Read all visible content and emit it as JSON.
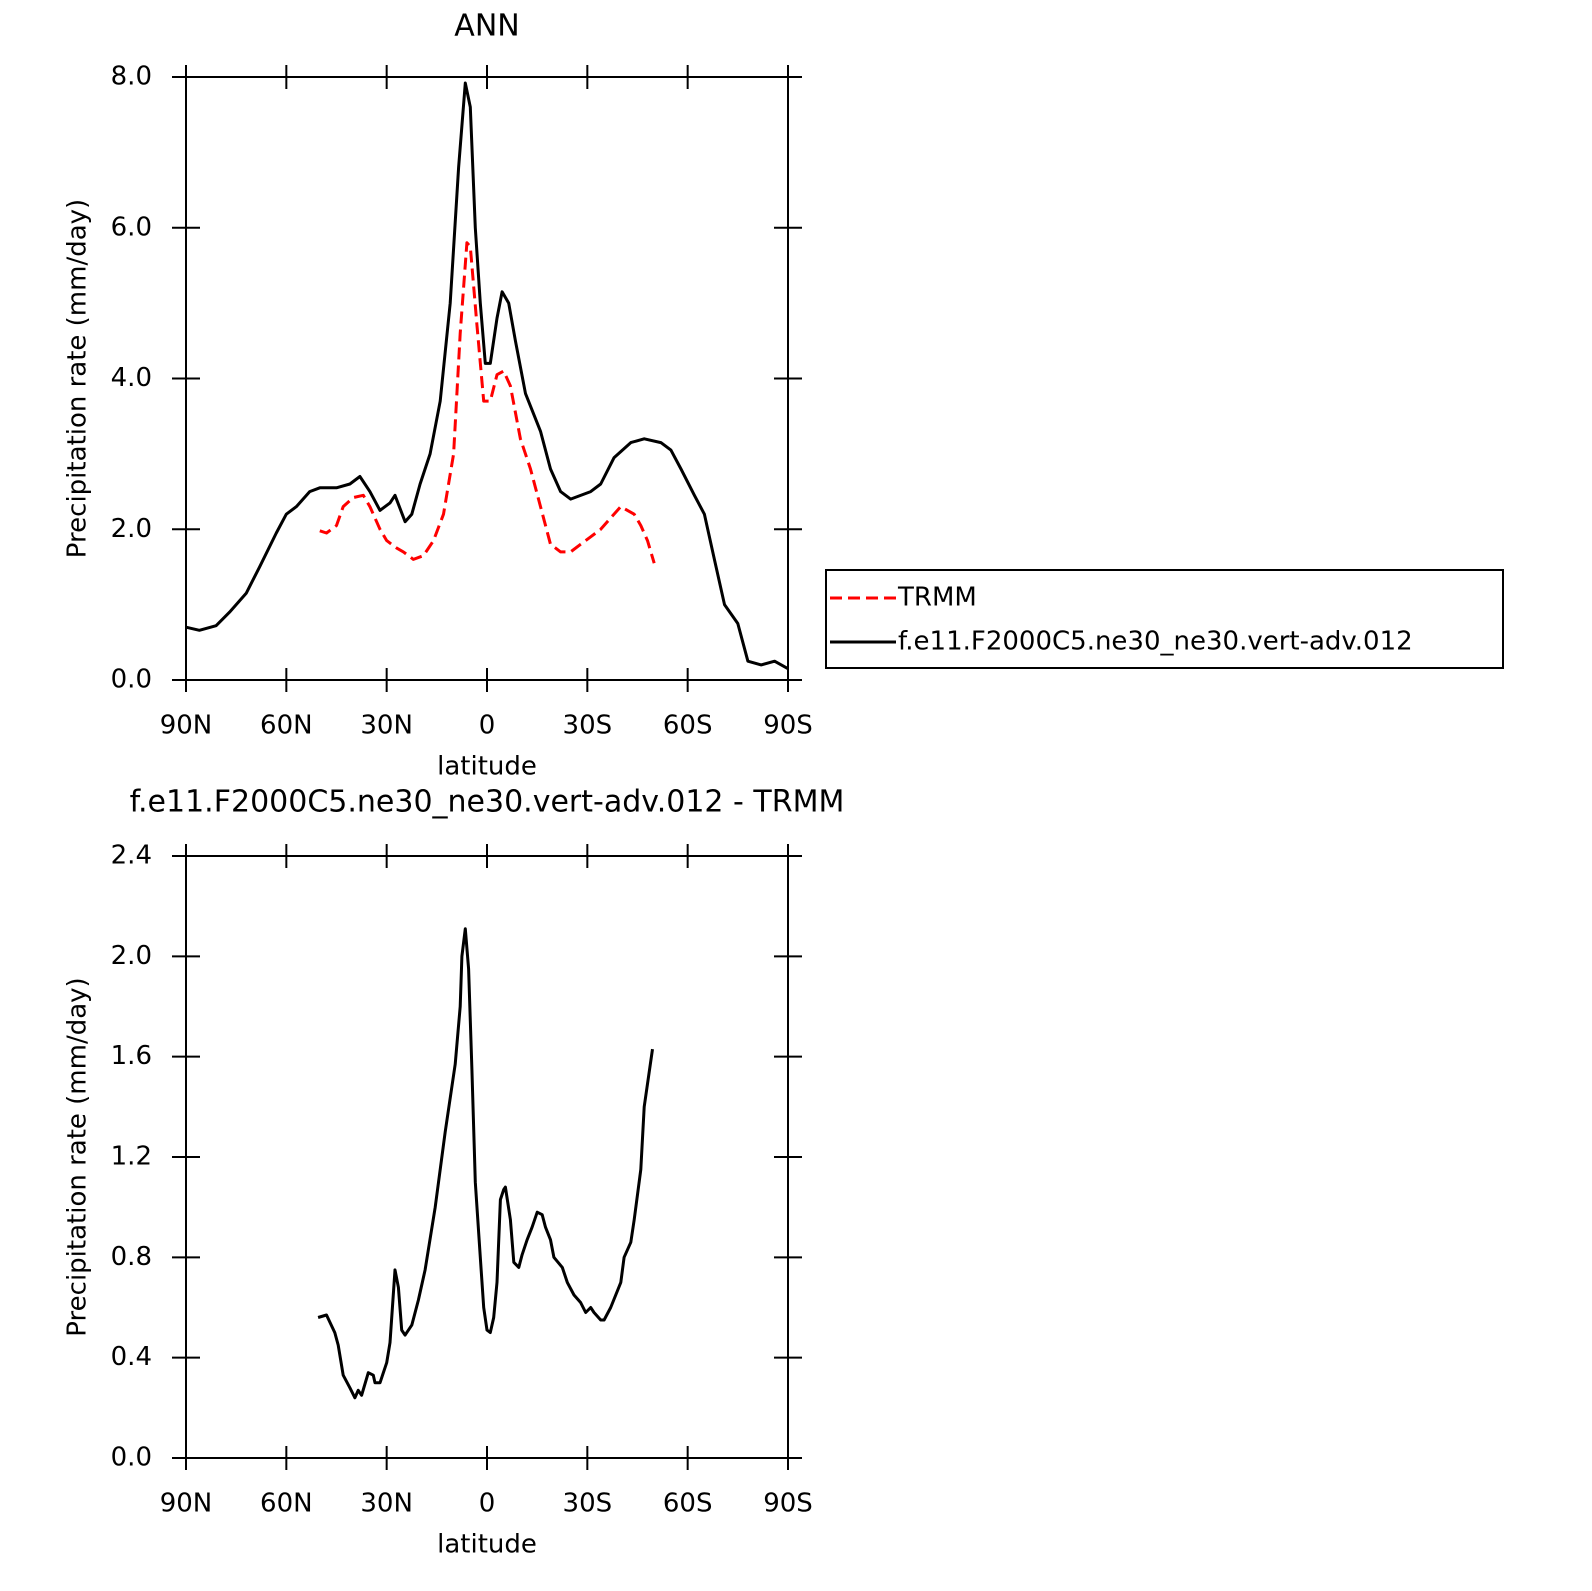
{
  "chart_data": [
    {
      "type": "line",
      "title": "ANN",
      "xlabel": "latitude",
      "ylabel": "Precipitation rate (mm/day)",
      "xlim": [
        90,
        -90
      ],
      "xticks": [
        {
          "value": 90,
          "label": "90N"
        },
        {
          "value": 60,
          "label": "60N"
        },
        {
          "value": 30,
          "label": "30N"
        },
        0,
        {
          "value": -30,
          "label": "30S"
        },
        {
          "value": -60,
          "label": "60S"
        },
        {
          "value": -90,
          "label": "90S"
        }
      ],
      "ylim": [
        0,
        8
      ],
      "yticks": [
        {
          "value": 0,
          "label": "0.0"
        },
        {
          "value": 2,
          "label": "2.0"
        },
        {
          "value": 4,
          "label": "4.0"
        },
        {
          "value": 6,
          "label": "6.0"
        },
        {
          "value": 8,
          "label": "8.0"
        }
      ],
      "legend": "outside right",
      "series": [
        {
          "name": "TRMM",
          "color": "#ff0000",
          "style": "dashed",
          "x": [
            50,
            48,
            45,
            43,
            40,
            37,
            35,
            32,
            30,
            27,
            25,
            22,
            19,
            16,
            13,
            10,
            8,
            6,
            5,
            3,
            1,
            -1,
            -3,
            -5,
            -7,
            -10,
            -13,
            -16,
            -19,
            -22,
            -25,
            -28,
            -31,
            -34,
            -37,
            -40,
            -42,
            -44,
            -46,
            -48,
            -50
          ],
          "values": [
            1.98,
            1.95,
            2.05,
            2.3,
            2.42,
            2.45,
            2.3,
            2.0,
            1.85,
            1.75,
            1.7,
            1.6,
            1.65,
            1.85,
            2.2,
            3.0,
            4.6,
            5.8,
            5.75,
            4.7,
            3.7,
            3.7,
            4.05,
            4.1,
            3.9,
            3.2,
            2.8,
            2.3,
            1.8,
            1.7,
            1.7,
            1.8,
            1.9,
            2.0,
            2.15,
            2.3,
            2.25,
            2.2,
            2.05,
            1.85,
            1.55
          ]
        },
        {
          "name": "f.e11.F2000C5.ne30_ne30.vert-adv.012",
          "color": "#000000",
          "style": "solid",
          "x": [
            90,
            86,
            81,
            77,
            72,
            68,
            63,
            60,
            57,
            53,
            50,
            45,
            41,
            38,
            35,
            32,
            29,
            27.5,
            24.5,
            22.5,
            20,
            17,
            14,
            11,
            8.5,
            6.5,
            5,
            3.5,
            2,
            0.5,
            -1,
            -3,
            -4.5,
            -6.5,
            -8.5,
            -11.5,
            -16,
            -19,
            -22,
            -25,
            -31,
            -34,
            -38,
            -43,
            -47,
            -52,
            -55,
            -58,
            -62,
            -65,
            -68,
            -71,
            -75,
            -78,
            -82,
            -86,
            -90
          ],
          "values": [
            0.7,
            0.66,
            0.72,
            0.9,
            1.15,
            1.5,
            1.95,
            2.2,
            2.3,
            2.5,
            2.55,
            2.55,
            2.6,
            2.7,
            2.5,
            2.25,
            2.35,
            2.45,
            2.1,
            2.2,
            2.6,
            3.0,
            3.7,
            5.0,
            6.8,
            7.92,
            7.6,
            6.0,
            5.0,
            4.2,
            4.2,
            4.8,
            5.15,
            5.0,
            4.5,
            3.8,
            3.3,
            2.8,
            2.5,
            2.4,
            2.5,
            2.6,
            2.95,
            3.15,
            3.2,
            3.15,
            3.05,
            2.8,
            2.45,
            2.2,
            1.6,
            1.0,
            0.75,
            0.25,
            0.2,
            0.25,
            0.15
          ]
        }
      ]
    },
    {
      "type": "line",
      "title": "f.e11.F2000C5.ne30_ne30.vert-adv.012 - TRMM",
      "xlabel": "latitude",
      "ylabel": "Precipitation rate (mm/day)",
      "xlim": [
        90,
        -90
      ],
      "xticks": [
        {
          "value": 90,
          "label": "90N"
        },
        {
          "value": 60,
          "label": "60N"
        },
        {
          "value": 30,
          "label": "30N"
        },
        0,
        {
          "value": -30,
          "label": "30S"
        },
        {
          "value": -60,
          "label": "60S"
        },
        {
          "value": -90,
          "label": "90S"
        }
      ],
      "ylim": [
        0,
        2.4
      ],
      "yticks": [
        {
          "value": 0,
          "label": "0.0"
        },
        0.4,
        0.8,
        1.2,
        1.6,
        {
          "value": 2,
          "label": "2.0"
        },
        2.4
      ],
      "series": [
        {
          "color": "#000000",
          "style": "solid",
          "x": [
            50.5,
            48,
            45.5,
            44.5,
            43,
            41,
            39.5,
            38.5,
            37.5,
            35.5,
            34,
            33.5,
            32,
            30,
            29,
            27.5,
            26.5,
            25.5,
            24.5,
            22.5,
            20.5,
            18.5,
            15.5,
            12.5,
            9.5,
            8,
            7.5,
            6.5,
            5.5,
            4.5,
            3.5,
            2,
            1,
            0,
            -1,
            -2,
            -3,
            -4,
            -5,
            -5.5,
            -7,
            -8,
            -9.5,
            -10.5,
            -12,
            -13.5,
            -15,
            -16.5,
            -17.5,
            -19,
            -20,
            -22.5,
            -24,
            -26,
            -28,
            -29.5,
            -31,
            -32,
            -34,
            -35,
            -37,
            -40,
            -41,
            -43,
            -44,
            -46,
            -47,
            -49.5
          ],
          "values": [
            0.56,
            0.57,
            0.5,
            0.45,
            0.33,
            0.28,
            0.24,
            0.27,
            0.25,
            0.34,
            0.33,
            0.3,
            0.3,
            0.38,
            0.46,
            0.75,
            0.68,
            0.51,
            0.49,
            0.53,
            0.63,
            0.75,
            1.0,
            1.3,
            1.57,
            1.8,
            2.0,
            2.11,
            1.95,
            1.55,
            1.1,
            0.8,
            0.6,
            0.51,
            0.5,
            0.56,
            0.7,
            1.03,
            1.07,
            1.08,
            0.95,
            0.78,
            0.76,
            0.81,
            0.87,
            0.92,
            0.98,
            0.97,
            0.92,
            0.87,
            0.8,
            0.76,
            0.7,
            0.65,
            0.62,
            0.58,
            0.6,
            0.58,
            0.55,
            0.55,
            0.6,
            0.7,
            0.8,
            0.86,
            0.95,
            1.15,
            1.4,
            1.63
          ]
        }
      ]
    }
  ]
}
